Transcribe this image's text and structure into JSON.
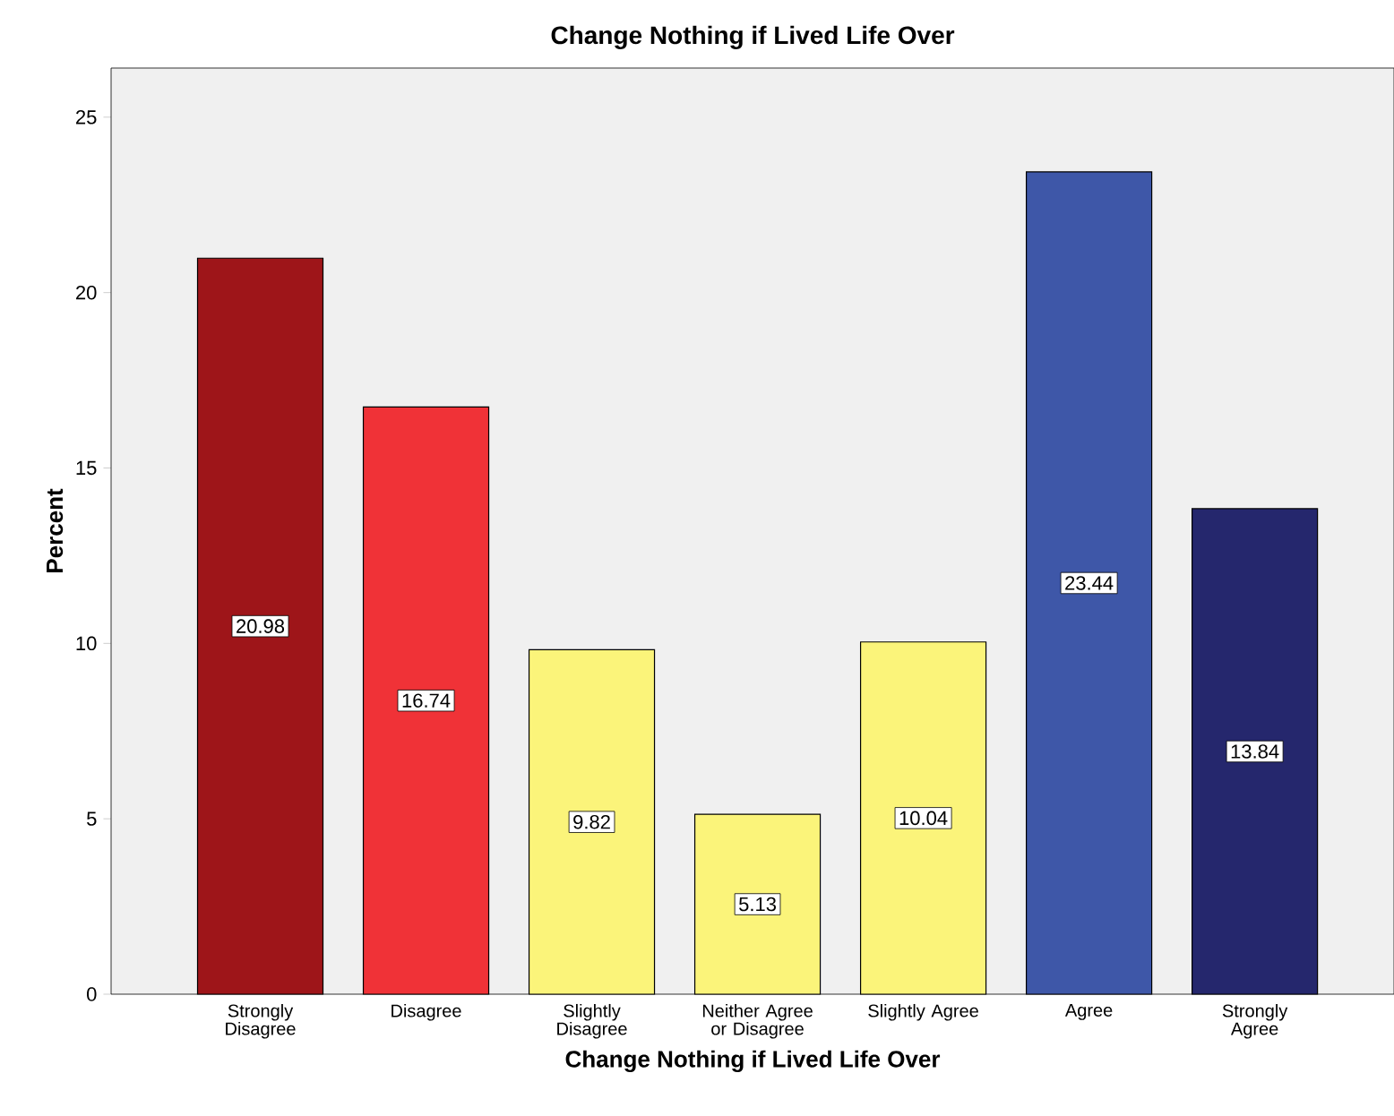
{
  "chart_data": {
    "type": "bar",
    "title": "Change Nothing if Lived Life Over",
    "xlabel": "Change Nothing if Lived Life Over",
    "ylabel": "Percent",
    "categories": [
      "Strongly Disagree",
      "Disagree",
      "Slightly Disagree",
      "Neither Agree or Disagree",
      "Slightly Agree",
      "Agree",
      "Strongly Agree"
    ],
    "values": [
      20.98,
      16.74,
      9.82,
      5.13,
      10.04,
      23.44,
      13.84
    ],
    "colors": [
      "#9e1519",
      "#f03237",
      "#fbf47a",
      "#fbf47a",
      "#fbf47a",
      "#3e57a8",
      "#25276d"
    ],
    "ylim": [
      0,
      26.4
    ],
    "yticks": [
      0,
      5,
      10,
      15,
      20,
      25
    ],
    "data_labels": true,
    "grid": false
  }
}
